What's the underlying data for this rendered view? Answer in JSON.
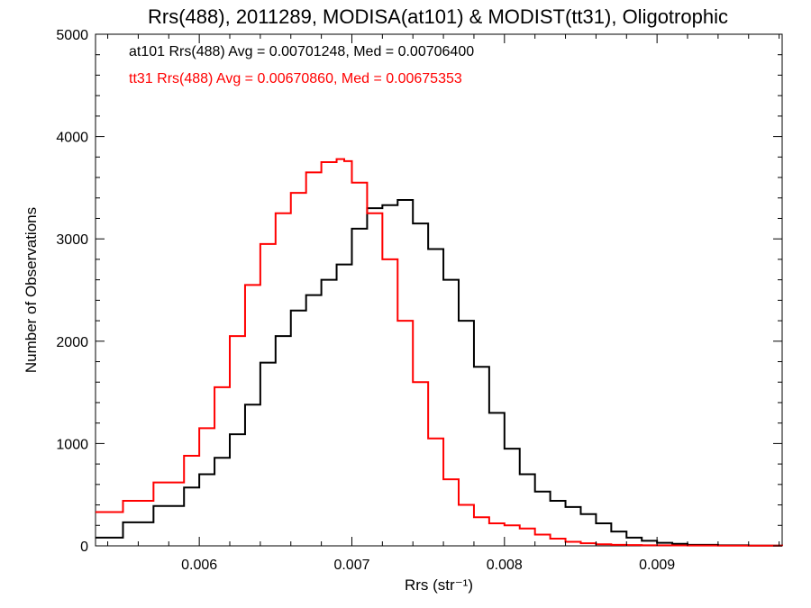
{
  "chart_data": {
    "type": "line",
    "title": "Rrs(488), 2011289, MODISA(at101) & MODIST(tt31), Oligotrophic",
    "xlabel": "Rrs (str⁻¹)",
    "ylabel": "Number of Observations",
    "xlim": [
      0.00532,
      0.00982
    ],
    "ylim": [
      0,
      5000
    ],
    "xticks": [
      0.006,
      0.007,
      0.008,
      0.009
    ],
    "xtick_labels": [
      "0.006",
      "0.007",
      "0.008",
      "0.009"
    ],
    "yticks": [
      0,
      1000,
      2000,
      3000,
      4000,
      5000
    ],
    "ytick_labels": [
      "0",
      "1000",
      "2000",
      "3000",
      "4000",
      "5000"
    ],
    "grid": false,
    "legend_position": "top-left",
    "series": [
      {
        "name": "at101 Rrs(488) Avg = 0.00701248, Med = 0.00706400",
        "color": "#000000",
        "x": [
          0.00532,
          0.0055,
          0.0057,
          0.0059,
          0.006,
          0.0061,
          0.0062,
          0.0063,
          0.0064,
          0.0065,
          0.0066,
          0.0067,
          0.0068,
          0.0069,
          0.007,
          0.0071,
          0.0072,
          0.0073,
          0.0074,
          0.0075,
          0.0076,
          0.0077,
          0.0078,
          0.0079,
          0.008,
          0.0081,
          0.0082,
          0.0083,
          0.0084,
          0.0085,
          0.0086,
          0.0087,
          0.0088,
          0.0089,
          0.009,
          0.0091,
          0.0092,
          0.0094,
          0.0096,
          0.00982
        ],
        "y": [
          80,
          230,
          390,
          570,
          700,
          860,
          1090,
          1380,
          1790,
          2050,
          2300,
          2450,
          2600,
          2750,
          3100,
          3300,
          3330,
          3380,
          3150,
          2900,
          2600,
          2200,
          1750,
          1300,
          950,
          700,
          530,
          440,
          380,
          310,
          220,
          140,
          80,
          50,
          30,
          20,
          10,
          5,
          2,
          0
        ]
      },
      {
        "name": "tt31 Rrs(488) Avg = 0.00670860, Med = 0.00675353",
        "color": "#ff0000",
        "x": [
          0.00532,
          0.0055,
          0.0057,
          0.0059,
          0.006,
          0.0061,
          0.0062,
          0.0063,
          0.0064,
          0.0065,
          0.0066,
          0.0067,
          0.0068,
          0.0069,
          0.00695,
          0.007,
          0.0071,
          0.0072,
          0.0073,
          0.0074,
          0.0075,
          0.0076,
          0.0077,
          0.0078,
          0.0079,
          0.008,
          0.0081,
          0.0082,
          0.0083,
          0.0084,
          0.0085,
          0.0086,
          0.0087,
          0.0088,
          0.0089,
          0.009,
          0.0091,
          0.0092,
          0.0094,
          0.0096,
          0.00982
        ],
        "y": [
          330,
          440,
          620,
          880,
          1150,
          1550,
          2050,
          2550,
          2950,
          3250,
          3450,
          3650,
          3750,
          3780,
          3760,
          3550,
          3250,
          2800,
          2200,
          1600,
          1050,
          650,
          400,
          280,
          220,
          200,
          170,
          110,
          70,
          40,
          25,
          15,
          10,
          8,
          6,
          5,
          4,
          3,
          2,
          2,
          1
        ]
      }
    ]
  }
}
